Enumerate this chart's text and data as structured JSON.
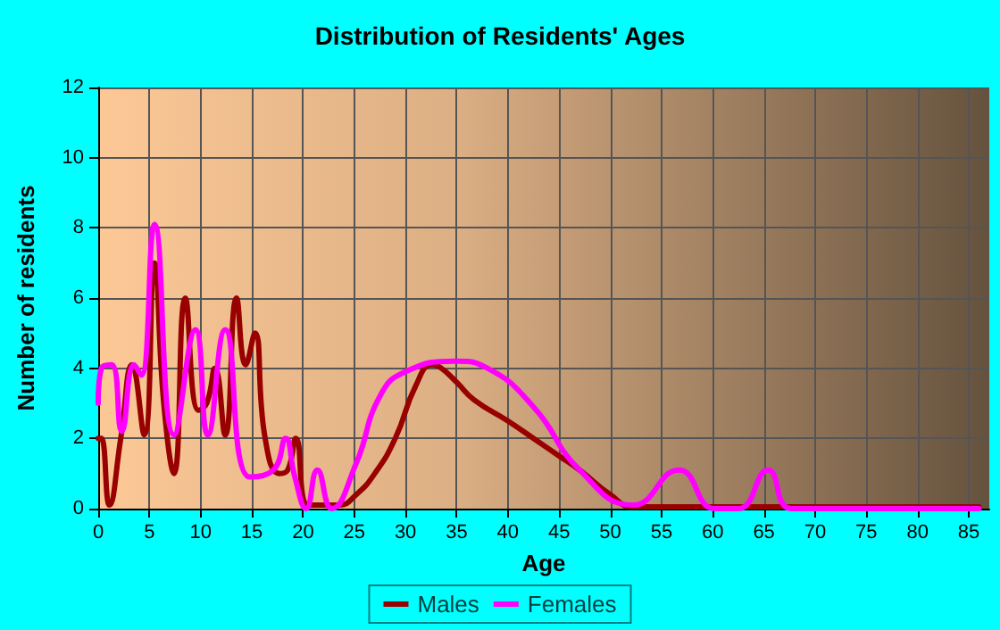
{
  "chart_data": {
    "type": "line",
    "title": "Distribution of Residents' Ages",
    "xlabel": "Age",
    "ylabel": "Number of residents",
    "xlim": [
      0,
      87
    ],
    "xticks": [
      0,
      5,
      10,
      15,
      20,
      25,
      30,
      35,
      40,
      45,
      50,
      55,
      60,
      65,
      70,
      75,
      80,
      85
    ],
    "ylim": [
      0,
      12
    ],
    "yticks": [
      0,
      2,
      4,
      6,
      8,
      10,
      12
    ],
    "grid": true,
    "legend": "bottom",
    "marker": "none",
    "line_style": "solid",
    "series": [
      {
        "name": "Males",
        "color": "#990000",
        "x": [
          0,
          0.3,
          1.1,
          2.2,
          3.3,
          4.5,
          5.5,
          6.4,
          7.4,
          8.5,
          9.8,
          10.6,
          11.4,
          12.4,
          13.5,
          14.4,
          15.3,
          16.3,
          17.7,
          18.5,
          19.3,
          20.5,
          22,
          23.5,
          25.2,
          27,
          29,
          31,
          32.6,
          33.5,
          35,
          36.7,
          40,
          43,
          45,
          47,
          50,
          52.2,
          55,
          60,
          70,
          80,
          86
        ],
        "values": [
          2,
          2,
          0.1,
          2,
          4.1,
          2.1,
          7,
          3,
          1,
          6,
          2.8,
          3,
          4,
          2.1,
          6,
          4.1,
          5,
          2,
          1,
          1.1,
          2,
          0.1,
          0.1,
          0.1,
          0.4,
          1,
          2,
          3.5,
          4.1,
          4,
          3.6,
          3.1,
          2.5,
          1.9,
          1.5,
          1.1,
          0.4,
          0.05,
          0.05,
          0.05,
          0.05,
          0.05,
          0.05
        ]
      },
      {
        "name": "Females",
        "color": "#ff00ff",
        "x": [
          0,
          0.3,
          1.3,
          2.3,
          3.5,
          4.2,
          5.5,
          7.4,
          9.5,
          10.7,
          12.4,
          14.8,
          17.1,
          18.3,
          19.2,
          20.3,
          21.4,
          22.8,
          25.2,
          27.5,
          30,
          35,
          38,
          42.5,
          47,
          52.2,
          56.7,
          60.2,
          62.5,
          65.4,
          67.7,
          75,
          86
        ],
        "values": [
          3,
          4,
          4.1,
          2.2,
          4.1,
          3.8,
          8.1,
          2.1,
          5.1,
          2.1,
          5.1,
          0.9,
          1.1,
          2,
          0.9,
          0,
          1.1,
          0,
          1.3,
          3.2,
          3.9,
          4.2,
          4,
          2.9,
          1.1,
          0.1,
          1.1,
          0,
          0,
          1.1,
          0,
          0,
          0
        ]
      }
    ]
  }
}
